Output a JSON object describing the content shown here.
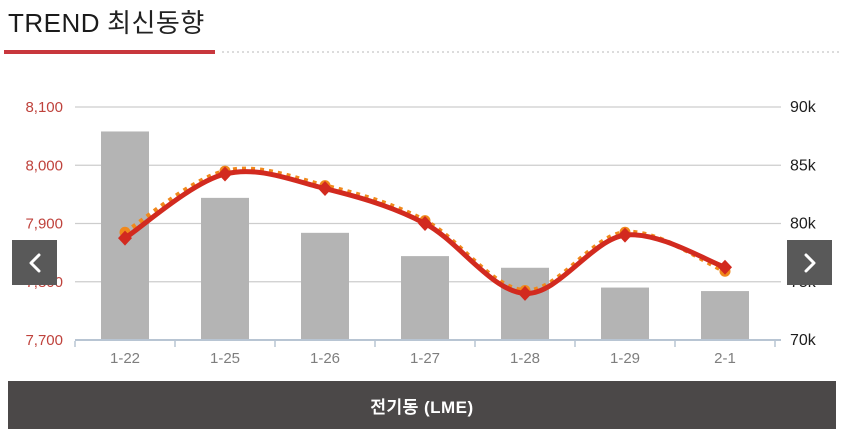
{
  "header": {
    "title_en": "TREND",
    "title_ko": "최신동향"
  },
  "nav": {
    "prev_icon": "chevron-left",
    "next_icon": "chevron-right"
  },
  "footer": {
    "label": "전기동 (LME)"
  },
  "colors": {
    "accent_red": "#c8373d",
    "line_red": "#d22a1f",
    "line_orange": "#f0891c",
    "bar_gray": "#b4b4b4",
    "grid": "#cdcdcd",
    "axis_line": "#b8c5d3",
    "left_axis_label": "#bf423c",
    "right_axis_label": "#1d1d1d",
    "x_label": "#7e7e7e",
    "nav_button_bg": "#595959",
    "footer_bg": "#4b4848"
  },
  "chart_data": {
    "type": "combo",
    "title": "전기동 (LME)",
    "categories": [
      "1-22",
      "1-25",
      "1-26",
      "1-27",
      "1-28",
      "1-29",
      "2-1"
    ],
    "series": [
      {
        "name": "stock-bars",
        "type": "bar",
        "axis": "right",
        "color": "#b4b4b4",
        "values": [
          87900,
          82200,
          79200,
          77200,
          76200,
          74500,
          74200
        ]
      },
      {
        "name": "price-line-dotted",
        "type": "line",
        "style": "dotted",
        "marker": "circle",
        "axis": "left",
        "color": "#f0891c",
        "values": [
          7885,
          7990,
          7965,
          7905,
          7785,
          7885,
          7818
        ]
      },
      {
        "name": "price-line-solid",
        "type": "line",
        "style": "solid",
        "marker": "diamond",
        "axis": "left",
        "color": "#d22a1f",
        "values": [
          7875,
          7985,
          7960,
          7900,
          7780,
          7880,
          7825
        ]
      }
    ],
    "left_axis": {
      "ticks": [
        "8,100",
        "8,000",
        "7,900",
        "7,800",
        "7,700"
      ],
      "min": 7700,
      "max": 8100,
      "label_color": "#bf423c"
    },
    "right_axis": {
      "ticks": [
        "90k",
        "85k",
        "80k",
        "75k",
        "70k"
      ],
      "min": 70000,
      "max": 90000,
      "label_color": "#1d1d1d"
    },
    "grid": true,
    "legend": false
  }
}
